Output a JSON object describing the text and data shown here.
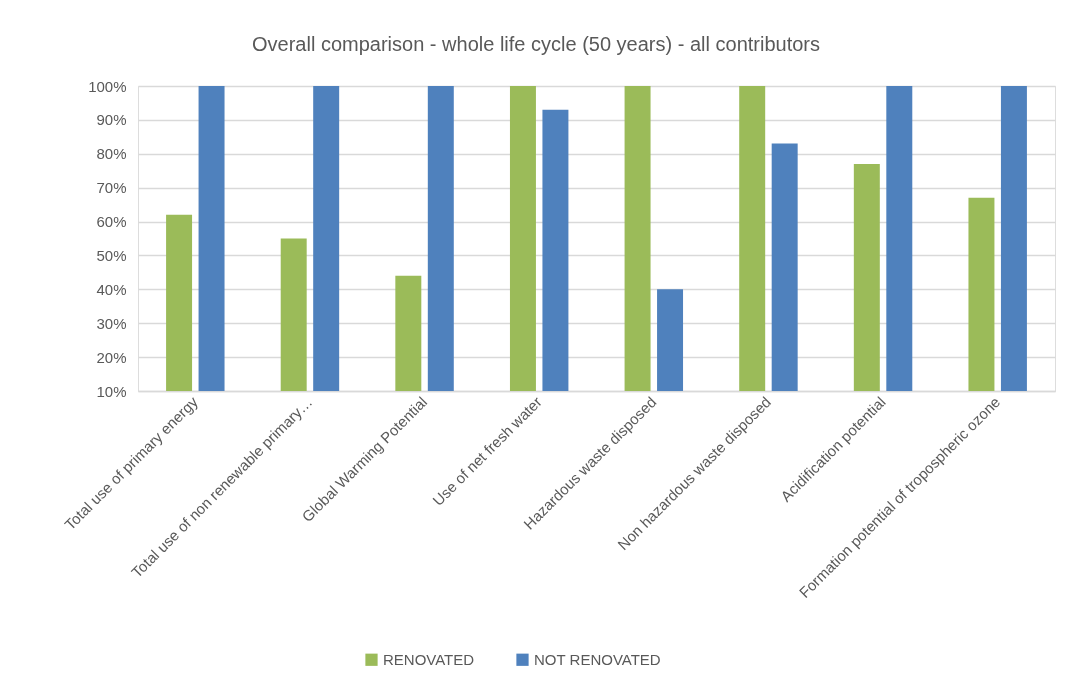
{
  "chart_data": {
    "type": "bar",
    "title": "Overall comparison - whole life cycle (50 years) - all contributors",
    "categories": [
      "Total use of primary energy",
      "Total use of non renewable primary…",
      "Global Warming Potential",
      "Use of net fresh water",
      "Hazardous waste disposed",
      "Non hazardous waste disposed",
      "Acidification potential",
      "Formation potential of tropospheric ozone"
    ],
    "series": [
      {
        "name": "RENOVATED",
        "color": "#9bbb59",
        "values": [
          62,
          55,
          44,
          100,
          100,
          100,
          77,
          67
        ]
      },
      {
        "name": "NOT RENOVATED",
        "color": "#4f81bd",
        "values": [
          100,
          100,
          100,
          93,
          40,
          83,
          100,
          100
        ]
      }
    ],
    "ylim": [
      10,
      100
    ],
    "yticks": [
      {
        "value": 10,
        "label": "10%"
      },
      {
        "value": 20,
        "label": "20%"
      },
      {
        "value": 30,
        "label": "30%"
      },
      {
        "value": 40,
        "label": "40%"
      },
      {
        "value": 50,
        "label": "50%"
      },
      {
        "value": 60,
        "label": "60%"
      },
      {
        "value": 70,
        "label": "70%"
      },
      {
        "value": 80,
        "label": "80%"
      },
      {
        "value": 90,
        "label": "90%"
      },
      {
        "value": 100,
        "label": "100%"
      }
    ],
    "grid": "y",
    "legend": "bottom"
  }
}
